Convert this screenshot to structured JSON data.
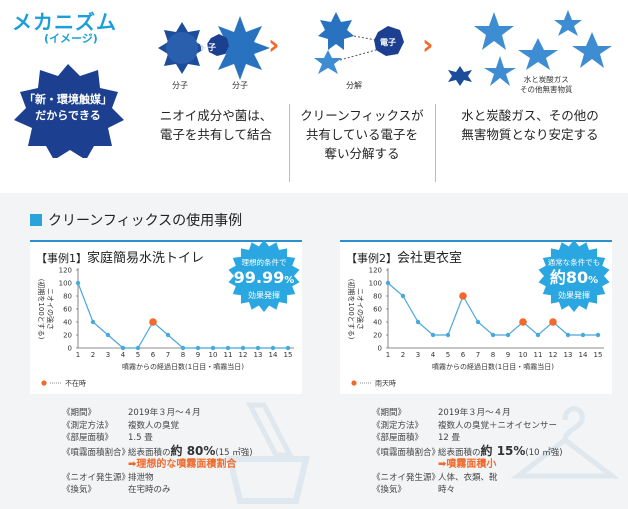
{
  "mechanism": {
    "title": "メカニズム",
    "subtitle": "(イメージ)",
    "badge_line1": "「新・環境触媒」",
    "badge_line2": "だからできる",
    "step1": {
      "label_left": "分子",
      "label_right": "分子",
      "electron": "電子",
      "desc_line1": "ニオイ成分や菌は、",
      "desc_line2": "電子を共有して結合"
    },
    "step2": {
      "label": "分解",
      "electron": "電子",
      "desc_line1": "クリーンフィックスが",
      "desc_line2": "共有している電子を",
      "desc_line3": "奪い分解する"
    },
    "step3": {
      "label_line1": "水と炭酸ガス",
      "label_line2": "その他無害物質",
      "desc_line1": "水と炭酸ガス、その他の",
      "desc_line2": "無害物質となり安定する"
    }
  },
  "section": {
    "title": "クリーンフィックスの使用事例"
  },
  "cases": [
    {
      "tag": "【事例1】",
      "name": "家庭簡易水洗トイレ",
      "burst_line1": "理想的条件で",
      "burst_line2": "99.99",
      "burst_unit": "%",
      "burst_line3": "効果発揮",
      "ylabel1": "ニオイの強さ",
      "ylabel2": "(初期を100とする)",
      "xlabel": "噴霧からの経過日数(1日目・噴霧当日)",
      "legend": "不在時",
      "info": [
        {
          "k": "《期間》",
          "v": "2019年３月～４月"
        },
        {
          "k": "《測定方法》",
          "v": "複数人の臭覚"
        },
        {
          "k": "《部屋面積》",
          "v": "1.5 畳"
        },
        {
          "k": "《噴霧面積割合》",
          "v_pre": "総表面積の",
          "v_big": "約 80%",
          "v_post": "(15 ㎡強)"
        },
        {
          "k": "",
          "v_hl": "➡理想的な噴霧面積割合"
        },
        {
          "k": "《ニオイ発生源》",
          "v": "排泄物"
        },
        {
          "k": "《換気》",
          "v": "在宅時のみ"
        }
      ]
    },
    {
      "tag": "【事例2】",
      "name": "会社更衣室",
      "burst_line1": "通常な条件でも",
      "burst_line2": "約80",
      "burst_unit": "%",
      "burst_line3": "効果発揮",
      "ylabel1": "ニオイの強さ",
      "ylabel2": "(初期を100とする)",
      "xlabel": "噴霧からの経過日数(1日目・噴霧当日)",
      "legend": "雨天時",
      "info": [
        {
          "k": "《期間》",
          "v": "2019年３月～４月"
        },
        {
          "k": "《測定方法》",
          "v": "複数人の臭覚＋ニオイセンサー"
        },
        {
          "k": "《部屋面積》",
          "v": "12 畳"
        },
        {
          "k": "《噴霧面積割合》",
          "v_pre": "総表面積の",
          "v_big": "約 15%",
          "v_post": "(10 ㎡強)"
        },
        {
          "k": "",
          "v_hl": "➡噴霧面積小"
        },
        {
          "k": "《ニオイ発生源》",
          "v": "人体、衣類、靴"
        },
        {
          "k": "《換気》",
          "v": "時々"
        }
      ]
    }
  ],
  "chart_data": [
    {
      "type": "line",
      "title": "家庭簡易水洗トイレ",
      "xlabel": "噴霧からの経過日数(1日目・噴霧当日)",
      "ylabel": "ニオイの強さ(初期を100とする)",
      "x": [
        1,
        2,
        3,
        4,
        5,
        6,
        7,
        8,
        9,
        10,
        11,
        12,
        13,
        14,
        15
      ],
      "series": [
        {
          "name": "",
          "values": [
            100,
            40,
            20,
            0,
            0,
            40,
            20,
            0,
            0,
            0,
            0,
            0,
            0,
            0,
            0
          ]
        }
      ],
      "highlight_x": [
        6
      ],
      "highlight_label": "不在時",
      "ylim": [
        0,
        120
      ],
      "yticks": [
        0,
        10,
        20,
        30,
        40,
        50,
        60,
        70,
        80,
        90,
        100,
        110,
        120
      ],
      "line_color": "#4aa8dc",
      "highlight_color": "#f26a2b"
    },
    {
      "type": "line",
      "title": "会社更衣室",
      "xlabel": "噴霧からの経過日数(1日目・噴霧当日)",
      "ylabel": "ニオイの強さ(初期を100とする)",
      "x": [
        1,
        2,
        3,
        4,
        5,
        6,
        7,
        8,
        9,
        10,
        11,
        12,
        13,
        14,
        15
      ],
      "series": [
        {
          "name": "",
          "values": [
            100,
            80,
            40,
            20,
            20,
            80,
            40,
            20,
            20,
            40,
            20,
            40,
            20,
            20,
            20
          ]
        }
      ],
      "highlight_x": [
        6,
        10,
        12
      ],
      "highlight_label": "雨天時",
      "ylim": [
        0,
        120
      ],
      "yticks": [
        0,
        10,
        20,
        30,
        40,
        50,
        60,
        70,
        80,
        90,
        100,
        110,
        120
      ],
      "line_color": "#4aa8dc",
      "highlight_color": "#f26a2b"
    }
  ],
  "colors": {
    "accent": "#1a9fd8",
    "dark_blue": "#1d3f8f",
    "orange": "#f26a2b",
    "star_blue": "#2f8fd0"
  }
}
